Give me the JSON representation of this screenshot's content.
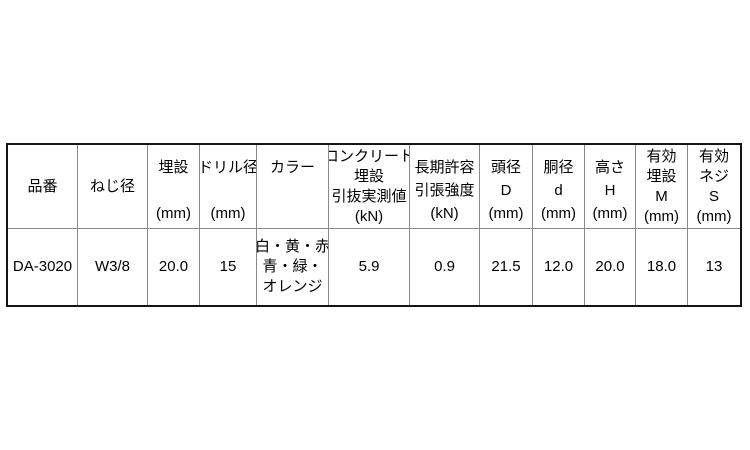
{
  "page": {
    "background": "#ffffff"
  },
  "table": {
    "border_color": "#141414",
    "grid_color": "#8a8a8a",
    "header": {
      "cols": [
        {
          "lines": [
            "品番"
          ]
        },
        {
          "lines": [
            "ねじ径"
          ]
        },
        {
          "lines": [
            "埋設",
            "(mm)"
          ]
        },
        {
          "lines": [
            "ドリル径",
            "(mm)"
          ]
        },
        {
          "lines": [
            "カラー"
          ]
        },
        {
          "lines": [
            "コンクリート",
            "埋設",
            "引抜実測値",
            "(kN)"
          ]
        },
        {
          "lines": [
            "長期許容",
            "引張強度",
            "(kN)"
          ]
        },
        {
          "lines": [
            "頭径",
            "D",
            "(mm)"
          ]
        },
        {
          "lines": [
            "胴径",
            "d",
            "(mm)"
          ]
        },
        {
          "lines": [
            "高さ",
            "H",
            "(mm)"
          ]
        },
        {
          "lines": [
            "有効",
            "埋設",
            "M",
            "(mm)"
          ]
        },
        {
          "lines": [
            "有効",
            "ネジ",
            "S",
            "(mm)"
          ]
        }
      ]
    },
    "row": {
      "part_no": "DA-3020",
      "screw_dia": "W3/8",
      "embed_depth": "20.0",
      "drill_dia": "15",
      "color_lines": [
        "白・黄・赤",
        "青・緑・",
        "オレンジ"
      ],
      "pullout_measured": "5.9",
      "tensile_allow": "0.9",
      "head_dia": "21.5",
      "body_dia": "12.0",
      "height": "20.0",
      "effective_embed": "18.0",
      "effective_thread": "13"
    }
  }
}
